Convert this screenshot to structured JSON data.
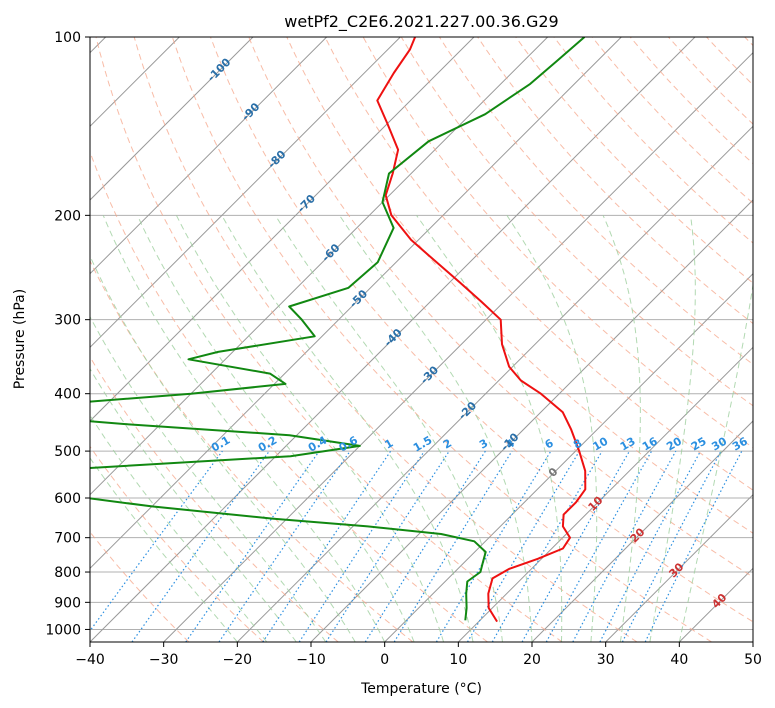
{
  "chart_data": {
    "type": "line",
    "subtype": "skew-t log-p",
    "title": "wetPf2_C2E6.2021.227.00.36.G29",
    "xlabel": "Temperature (°C)",
    "ylabel": "Pressure (hPa)",
    "xlim": [
      -40,
      50
    ],
    "ylim": [
      1050,
      100
    ],
    "y_scale": "log",
    "x_ticks": [
      -40,
      -30,
      -20,
      -10,
      0,
      10,
      20,
      30,
      40,
      50
    ],
    "y_ticks": [
      100,
      200,
      300,
      400,
      500,
      600,
      700,
      800,
      900,
      1000
    ],
    "grid": true,
    "colors": {
      "temperature": "#ee1111",
      "dewpoint": "#118811",
      "isotherm": "#999999",
      "dry_adiabat": "#f5a58a",
      "moist_adiabat": "#9fcf9f",
      "mixing_ratio": "#2b8fe0",
      "mixing_ratio_label": "#2b8fe0",
      "isotherm_label": "#2a6fa8",
      "dry_adiabat_label": "#cc3333"
    },
    "isotherm_labels": [
      {
        "text": "-100",
        "T": -100,
        "p": 113
      },
      {
        "text": "-90",
        "T": -90,
        "p": 133
      },
      {
        "text": "-80",
        "T": -80,
        "p": 160
      },
      {
        "text": "-70",
        "T": -70,
        "p": 190
      },
      {
        "text": "-60",
        "T": -60,
        "p": 230
      },
      {
        "text": "-50",
        "T": -50,
        "p": 275
      },
      {
        "text": "-40",
        "T": -40,
        "p": 320
      },
      {
        "text": "-30",
        "T": -30,
        "p": 370
      },
      {
        "text": "-20",
        "T": -20,
        "p": 425
      },
      {
        "text": "-10",
        "T": -10,
        "p": 480
      },
      {
        "text": "0",
        "T": 0,
        "p": 540
      },
      {
        "text": "10",
        "T": 10,
        "p": 610
      },
      {
        "text": "20",
        "T": 20,
        "p": 690
      },
      {
        "text": "30",
        "T": 30,
        "p": 790
      },
      {
        "text": "40",
        "T": 40,
        "p": 890
      }
    ],
    "mixing_ratio_labels": [
      "0.1",
      "0.2",
      "0.4",
      "0.6",
      "1",
      "1.5",
      "2",
      "3",
      "4",
      "6",
      "8",
      "10",
      "13",
      "16",
      "20",
      "25",
      "30",
      "36"
    ],
    "mixing_ratio_values": [
      0.1,
      0.2,
      0.4,
      0.6,
      1,
      1.5,
      2,
      3,
      4,
      6,
      8,
      10,
      13,
      16,
      20,
      25,
      30,
      36
    ],
    "series": [
      {
        "name": "",
        "role": "temperature",
        "points": [
          {
            "p": 970,
            "T": 12.5
          },
          {
            "p": 920,
            "T": 9.5
          },
          {
            "p": 870,
            "T": 7.5
          },
          {
            "p": 820,
            "T": 6.0
          },
          {
            "p": 790,
            "T": 7.0
          },
          {
            "p": 760,
            "T": 9.5
          },
          {
            "p": 730,
            "T": 11.5
          },
          {
            "p": 700,
            "T": 11.0
          },
          {
            "p": 670,
            "T": 8.5
          },
          {
            "p": 640,
            "T": 7.0
          },
          {
            "p": 610,
            "T": 7.0
          },
          {
            "p": 580,
            "T": 6.5
          },
          {
            "p": 540,
            "T": 4.0
          },
          {
            "p": 500,
            "T": 0.5
          },
          {
            "p": 460,
            "T": -3.5
          },
          {
            "p": 430,
            "T": -7.0
          },
          {
            "p": 400,
            "T": -12.5
          },
          {
            "p": 380,
            "T": -17.0
          },
          {
            "p": 360,
            "T": -20.5
          },
          {
            "p": 330,
            "T": -24.5
          },
          {
            "p": 300,
            "T": -28.0
          },
          {
            "p": 280,
            "T": -33.0
          },
          {
            "p": 260,
            "T": -38.5
          },
          {
            "p": 240,
            "T": -44.5
          },
          {
            "p": 220,
            "T": -51.0
          },
          {
            "p": 200,
            "T": -57.0
          },
          {
            "p": 185,
            "T": -60.5
          },
          {
            "p": 170,
            "T": -62.5
          },
          {
            "p": 155,
            "T": -65.0
          },
          {
            "p": 140,
            "T": -70.0
          },
          {
            "p": 128,
            "T": -74.5
          },
          {
            "p": 115,
            "T": -76.0
          },
          {
            "p": 105,
            "T": -77.0
          },
          {
            "p": 100,
            "T": -78.0
          }
        ]
      },
      {
        "name": "",
        "role": "dewpoint",
        "points": [
          {
            "p": 965,
            "T": 8.0
          },
          {
            "p": 920,
            "T": 6.5
          },
          {
            "p": 870,
            "T": 4.5
          },
          {
            "p": 830,
            "T": 3.0
          },
          {
            "p": 800,
            "T": 3.5
          },
          {
            "p": 770,
            "T": 2.5
          },
          {
            "p": 740,
            "T": 1.5
          },
          {
            "p": 710,
            "T": -1.5
          },
          {
            "p": 690,
            "T": -7.0
          },
          {
            "p": 670,
            "T": -18.0
          },
          {
            "p": 650,
            "T": -32.0
          },
          {
            "p": 620,
            "T": -50.0
          },
          {
            "p": 600,
            "T": -60.0
          },
          {
            "p": 580,
            "T": -70.0
          },
          {
            "p": 560,
            "T": -75.0
          },
          {
            "p": 540,
            "T": -70.0
          },
          {
            "p": 510,
            "T": -38.0
          },
          {
            "p": 490,
            "T": -30.0
          },
          {
            "p": 470,
            "T": -41.0
          },
          {
            "p": 450,
            "T": -65.0
          },
          {
            "p": 435,
            "T": -81.0
          },
          {
            "p": 420,
            "T": -80.0
          },
          {
            "p": 400,
            "T": -60.0
          },
          {
            "p": 385,
            "T": -48.5
          },
          {
            "p": 370,
            "T": -52.0
          },
          {
            "p": 350,
            "T": -65.0
          },
          {
            "p": 340,
            "T": -62.0
          },
          {
            "p": 320,
            "T": -51.0
          },
          {
            "p": 300,
            "T": -55.0
          },
          {
            "p": 285,
            "T": -58.5
          },
          {
            "p": 265,
            "T": -53.0
          },
          {
            "p": 240,
            "T": -52.5
          },
          {
            "p": 210,
            "T": -55.0
          },
          {
            "p": 190,
            "T": -60.0
          },
          {
            "p": 170,
            "T": -63.0
          },
          {
            "p": 150,
            "T": -62.0
          },
          {
            "p": 135,
            "T": -58.0
          },
          {
            "p": 120,
            "T": -56.0
          },
          {
            "p": 110,
            "T": -55.5
          },
          {
            "p": 100,
            "T": -55.0
          }
        ]
      }
    ]
  }
}
